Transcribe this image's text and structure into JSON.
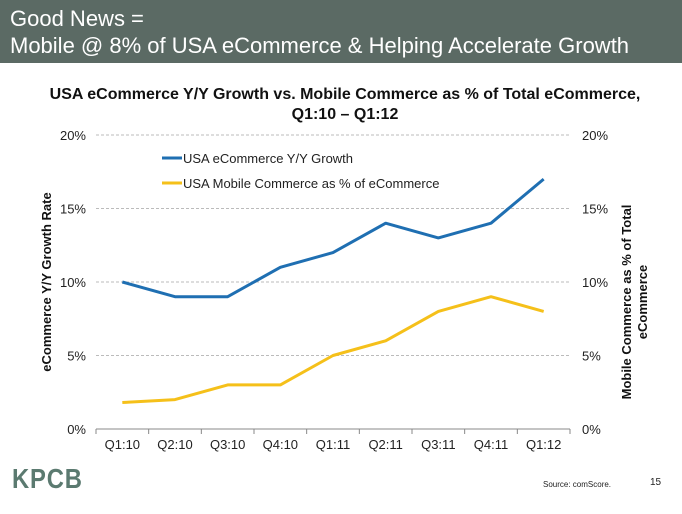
{
  "header": {
    "line1": "Good News =",
    "line2": "Mobile @ 8% of USA eCommerce & Helping Accelerate Growth",
    "color": "#5b6a64"
  },
  "chart_data": {
    "type": "line",
    "title": "USA eCommerce Y/Y Growth vs. Mobile Commerce as % of Total eCommerce, Q1:10 – Q1:12",
    "categories": [
      "Q1:10",
      "Q2:10",
      "Q3:10",
      "Q4:10",
      "Q1:11",
      "Q2:11",
      "Q3:11",
      "Q4:11",
      "Q1:12"
    ],
    "ylabel": "eCommerce Y/Y Growth Rate",
    "y2label": "Mobile Commerce as % of Total eCommerce",
    "ylim": [
      0,
      20
    ],
    "y2lim": [
      0,
      20
    ],
    "yticks": [
      "0%",
      "5%",
      "10%",
      "15%",
      "20%"
    ],
    "grid": true,
    "legend": "top-left",
    "series": [
      {
        "name": "USA eCommerce Y/Y Growth",
        "color": "#1f6fb2",
        "values": [
          10,
          9,
          9,
          11,
          12,
          14,
          13,
          14,
          17
        ]
      },
      {
        "name": "USA Mobile Commerce as % of eCommerce",
        "color": "#f5c01a",
        "values": [
          1.8,
          2,
          3,
          3,
          5,
          6,
          8,
          9,
          8
        ]
      }
    ]
  },
  "footer": {
    "logo": "KPCB",
    "source": "Source: comScore.",
    "page": "15"
  }
}
